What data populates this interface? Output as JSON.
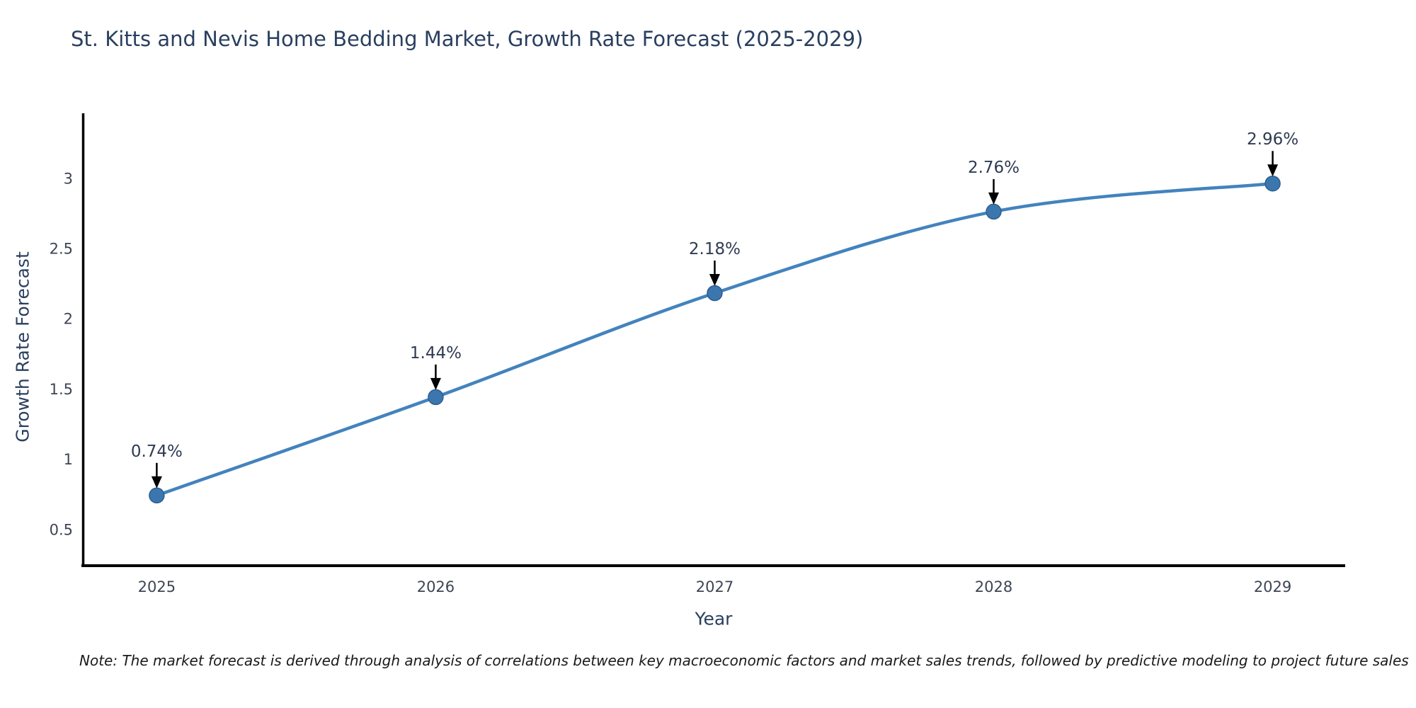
{
  "header": {
    "title": "St. Kitts and Nevis Home Bedding Market, Growth Rate Forecast (2025-2029)"
  },
  "footnote": "Note: The market forecast is derived through analysis of correlations between key macroeconomic factors and market sales trends, followed by predictive modeling to project future sales",
  "chart_data": {
    "type": "line",
    "title": "St. Kitts and Nevis Home Bedding Market, Growth Rate Forecast (2025-2029)",
    "xlabel": "Year",
    "ylabel": "Growth Rate Forecast",
    "x": [
      2025,
      2026,
      2027,
      2028,
      2029
    ],
    "series": [
      {
        "name": "Growth Rate Forecast",
        "values": [
          0.74,
          1.44,
          2.18,
          2.76,
          2.96
        ]
      }
    ],
    "point_labels": [
      "0.74%",
      "1.44%",
      "2.18%",
      "2.76%",
      "2.96%"
    ],
    "xticks": [
      "2025",
      "2026",
      "2027",
      "2028",
      "2029"
    ],
    "xtick_values": [
      2025,
      2026,
      2027,
      2028,
      2029
    ],
    "yticks": [
      "0.5",
      "1",
      "1.5",
      "2",
      "2.5",
      "3"
    ],
    "ytick_values": [
      0.5,
      1,
      1.5,
      2,
      2.5,
      3
    ],
    "xlim": [
      2024.73,
      2029.26
    ],
    "ylim": [
      0.24,
      3.46
    ],
    "line_shape": "spline",
    "grid": false,
    "legend": "none",
    "annotation_arrow_direction": "down",
    "colors": {
      "line": "#4383bd",
      "marker": "#3b76af",
      "marker_edge": "#2e5f8f",
      "axis": "#000000",
      "title_text": "#2a3f5f",
      "axis_label_text": "#2a3f5f",
      "tick_text": "#3d4554",
      "annotation_text": "#2f3b52",
      "arrow": "#000000",
      "background": "#ffffff"
    }
  }
}
